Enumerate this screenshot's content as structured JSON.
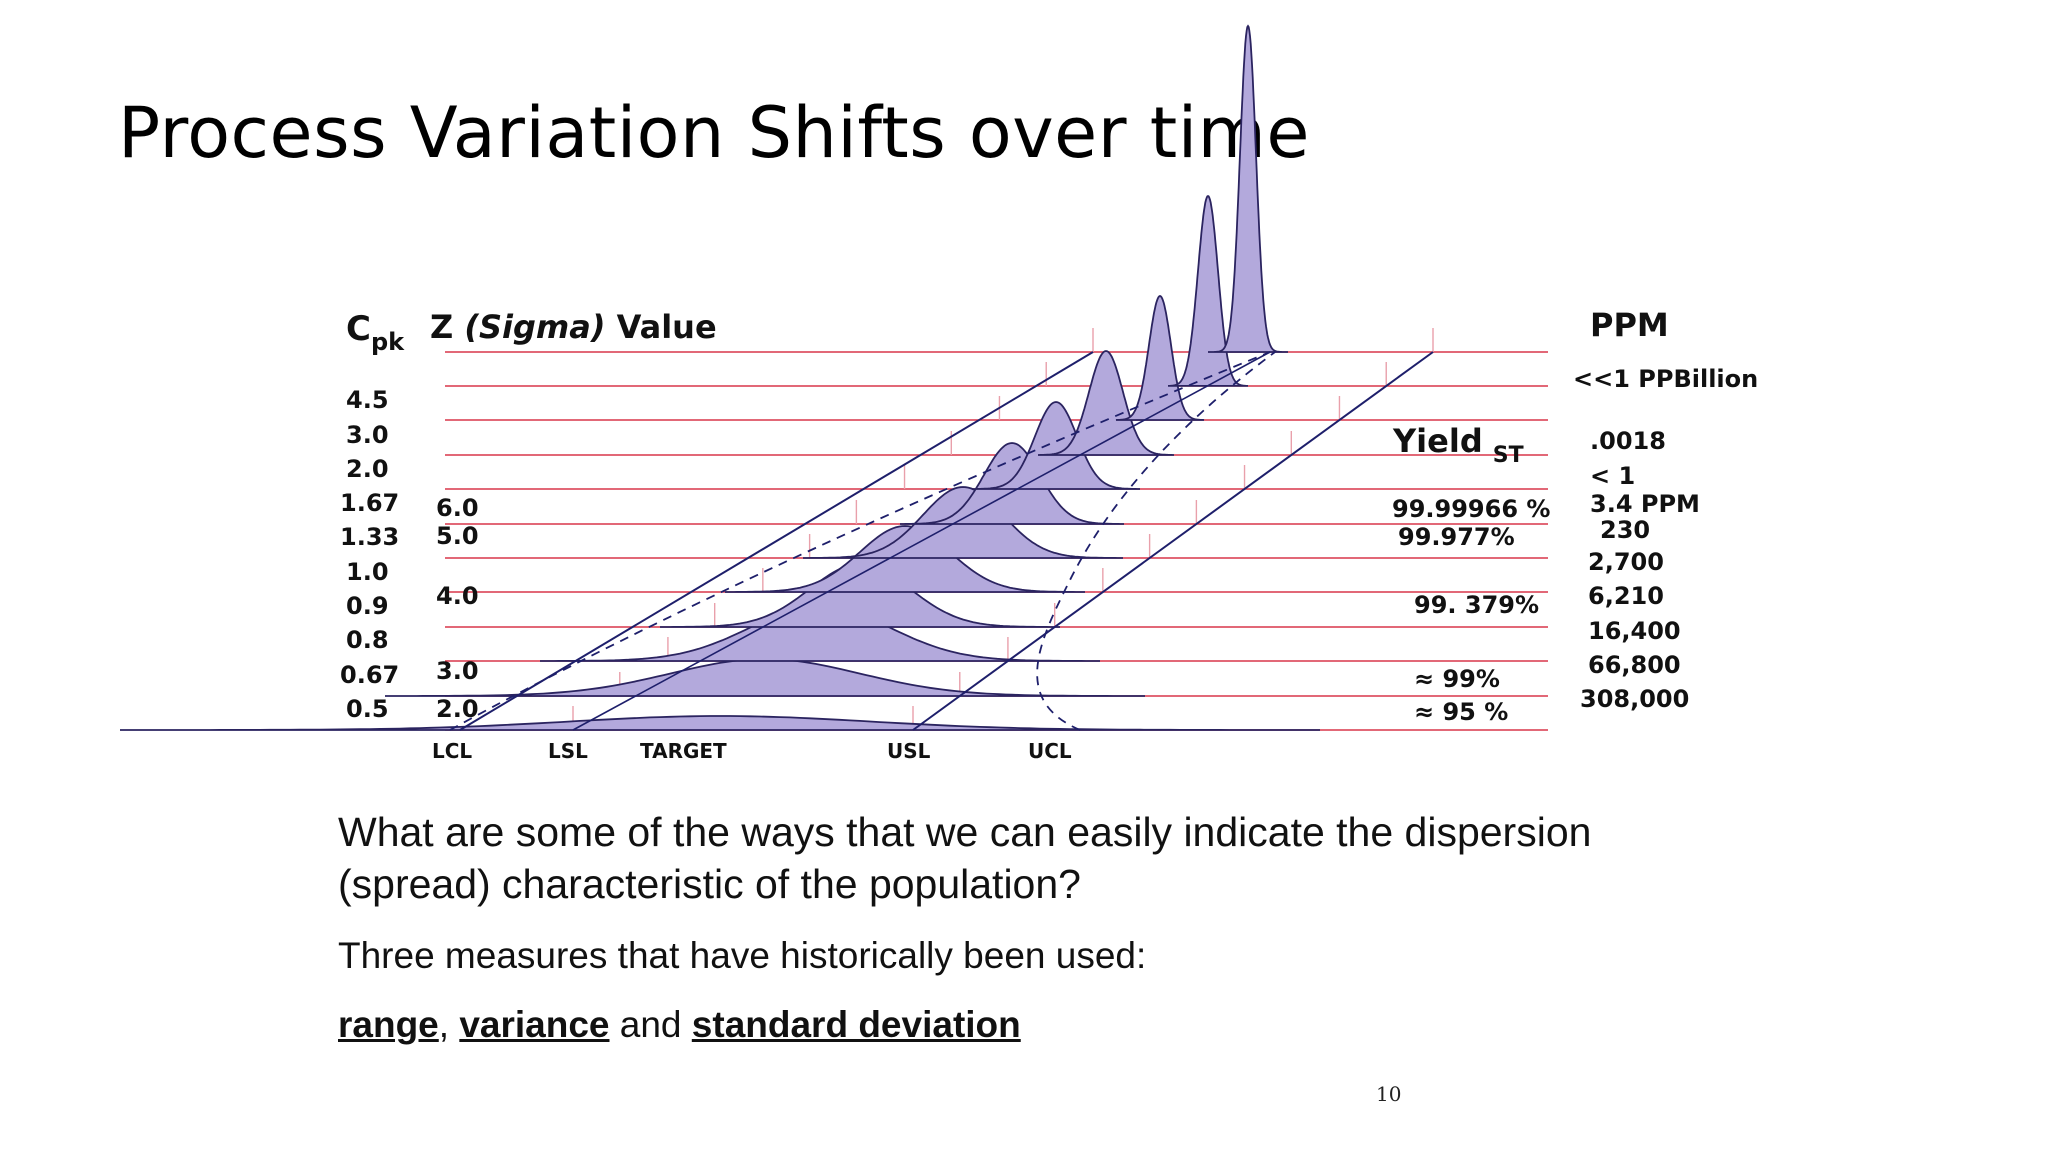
{
  "slide": {
    "title": "Process Variation Shifts over time",
    "question": "What are some of the ways that we can easily indicate the dispersion (spread) characteristic of the population?",
    "intro": "Three measures that have historically been used:",
    "measures": {
      "range": "range",
      "sep1": ", ",
      "variance": "variance",
      "sep2": " and ",
      "std_dev": "standard deviation"
    },
    "page_number": "10"
  },
  "diagram": {
    "header_cpk_main": "C",
    "header_cpk_sub": "pk",
    "header_z_prefix": "Z ",
    "header_z_italic": "(Sigma)",
    "header_z_suffix": " Value",
    "header_ppm": "PPM",
    "header_yield_main": "Yield",
    "header_yield_sub": "ST",
    "ppm_top": "<<1 PPBillion",
    "cpk": [
      "4.5",
      "3.0",
      "2.0",
      "1.67",
      "1.33",
      "1.0",
      "0.9",
      "0.8",
      "0.67",
      "0.5"
    ],
    "z": [
      "6.0",
      "5.0",
      "4.0",
      "3.0",
      "2.0"
    ],
    "ppm": [
      ".0018",
      "< 1",
      "3.4 PPM",
      "230",
      "2,700",
      "6,210",
      "16,400",
      "66,800",
      "308,000"
    ],
    "yield": [
      "99.99966 %",
      "99.977%",
      "99. 379%",
      "≈ 99%",
      "≈ 95 %"
    ],
    "bottom_labels": [
      "LCL",
      "LSL",
      "TARGET",
      "USL",
      "UCL"
    ],
    "colors": {
      "grid": "#d8374a",
      "curve_fill": "#b3a9dc",
      "curve_stroke": "#2b2460",
      "line": "#1e1f6b"
    }
  }
}
